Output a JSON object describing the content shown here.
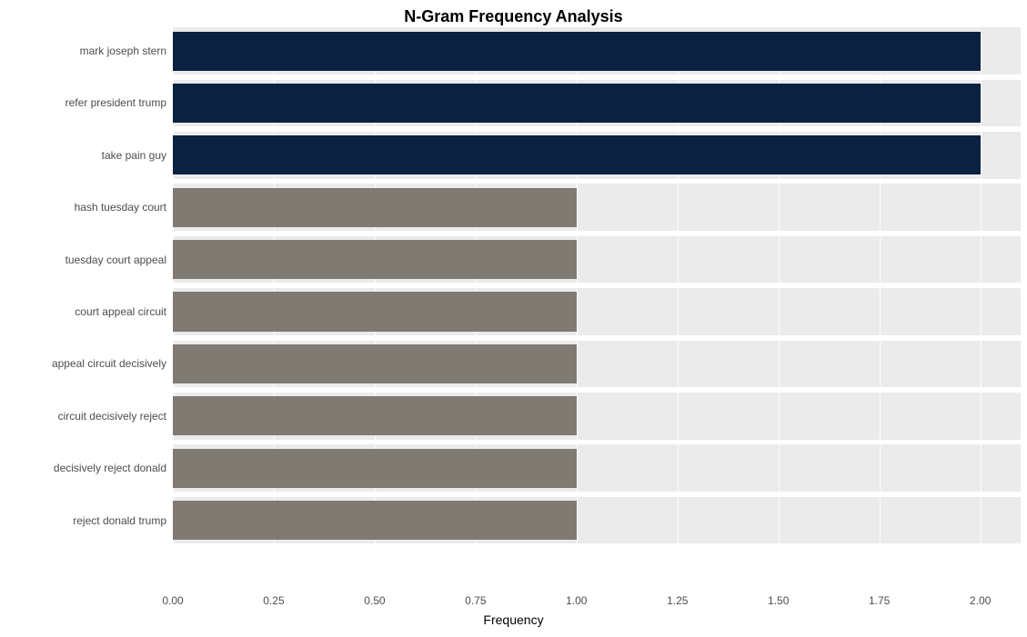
{
  "chart": {
    "type": "bar_horizontal",
    "title": "N-Gram Frequency Analysis",
    "title_fontsize": 18,
    "title_fontweight": "bold",
    "background_color": "#ffffff",
    "plot_background_alt_color": "#ebebeb",
    "grid_vline_color": "#ffffff",
    "xlabel": "Frequency",
    "xlabel_fontsize": 14,
    "tick_fontsize": 12,
    "tick_color": "#4d4d4d",
    "xlim": [
      0,
      2.1
    ],
    "xticks": [
      0.0,
      0.25,
      0.5,
      0.75,
      1.0,
      1.25,
      1.5,
      1.75,
      2.0
    ],
    "xtick_labels": [
      "0.00",
      "0.25",
      "0.50",
      "0.75",
      "1.00",
      "1.25",
      "1.50",
      "1.75",
      "2.00"
    ],
    "bar_height_ratio": 0.75,
    "categories": [
      "mark joseph stern",
      "refer president trump",
      "take pain guy",
      "hash tuesday court",
      "tuesday court appeal",
      "court appeal circuit",
      "appeal circuit decisively",
      "circuit decisively reject",
      "decisively reject donald",
      "reject donald trump"
    ],
    "values": [
      2,
      2,
      2,
      1,
      1,
      1,
      1,
      1,
      1,
      1
    ],
    "bar_colors": [
      "#0b2142",
      "#0b2142",
      "#0b2142",
      "#7f7a72",
      "#7f7a72",
      "#7f7a72",
      "#7f7a72",
      "#7f7a72",
      "#7f7a72",
      "#7f7a72"
    ]
  }
}
